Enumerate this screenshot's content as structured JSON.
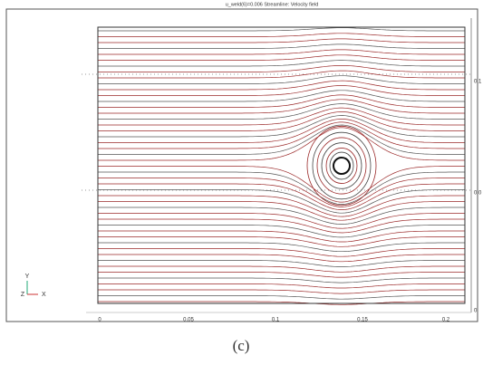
{
  "header": {
    "title": "u_weld(6)=0.006    Streamline: Velocity field"
  },
  "axes": {
    "x_ticks": [
      "0",
      "0.05",
      "0.1",
      "0.15",
      "0.2"
    ],
    "y_ticks": [
      "0.1",
      "0.0",
      "0"
    ]
  },
  "triad": {
    "y": "Y",
    "z": "Z",
    "x": "X"
  },
  "caption": "(c)"
}
